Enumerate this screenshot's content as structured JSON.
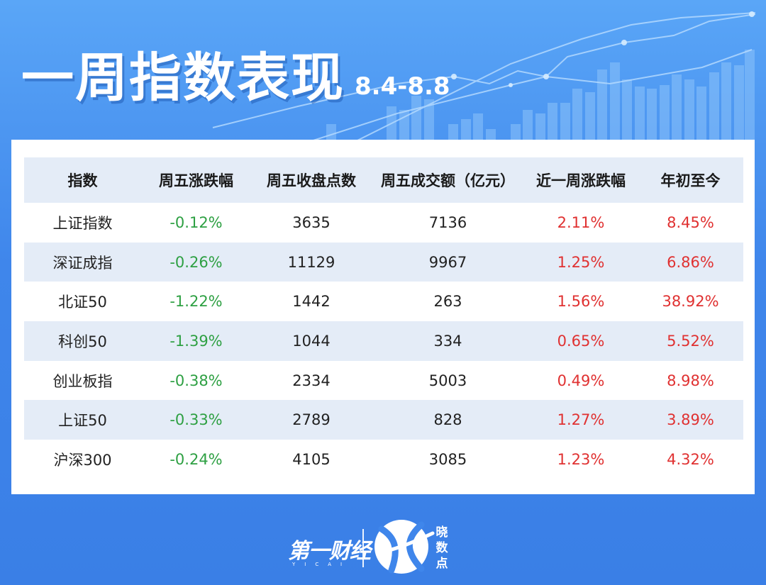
{
  "header": {
    "title": "一周指数表现",
    "date_range": "8.4-8.8"
  },
  "colors": {
    "background": "#3f86eb",
    "header_row": "#e4ecf7",
    "negative": "#2ea043",
    "positive": "#e03131"
  },
  "table": {
    "columns": [
      "指数",
      "周五涨跌幅",
      "周五收盘点数",
      "周五成交额（亿元）",
      "近一周涨跌幅",
      "年初至今"
    ],
    "rows": [
      [
        "上证指数",
        "-0.12%",
        "3635",
        "7136",
        "2.11%",
        "8.45%"
      ],
      [
        "深证成指",
        "-0.26%",
        "11129",
        "9967",
        "1.25%",
        "6.86%"
      ],
      [
        "北证50",
        "-1.22%",
        "1442",
        "263",
        "1.56%",
        "38.92%"
      ],
      [
        "科创50",
        "-1.39%",
        "1044",
        "334",
        "0.65%",
        "5.52%"
      ],
      [
        "创业板指",
        "-0.38%",
        "2334",
        "5003",
        "0.49%",
        "8.98%"
      ],
      [
        "上证50",
        "-0.33%",
        "2789",
        "828",
        "1.27%",
        "3.89%"
      ],
      [
        "沪深300",
        "-0.24%",
        "4105",
        "3085",
        "1.23%",
        "4.32%"
      ]
    ]
  },
  "footer": {
    "brand_text": "第一财经",
    "brand_sub": "YICAI",
    "product_label": [
      "晓",
      "数",
      "点"
    ],
    "logo_icon": "x-swoosh-icon"
  }
}
